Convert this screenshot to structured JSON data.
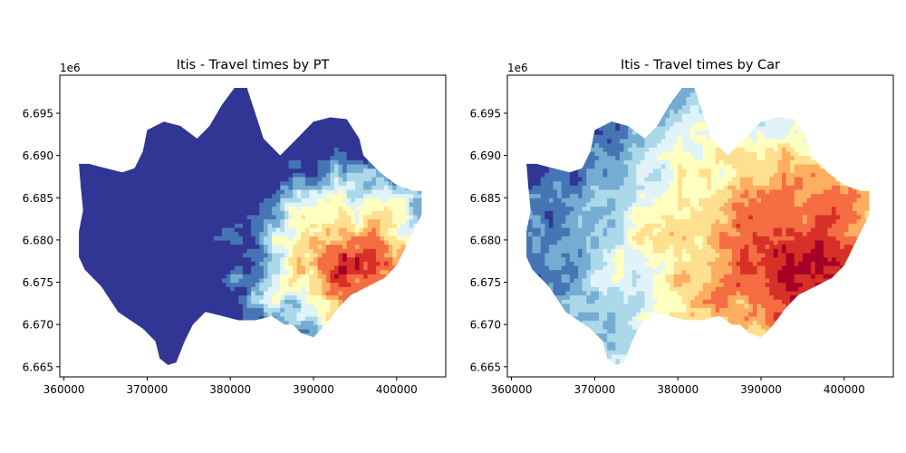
{
  "figure": {
    "colormap": [
      "#313695",
      "#4575b4",
      "#74add1",
      "#abd9e9",
      "#e0f3f8",
      "#ffffbf",
      "#fee090",
      "#fdae61",
      "#f46d43",
      "#d73027",
      "#a50026"
    ],
    "panels": [
      {
        "id": "pt",
        "title": "Itis - Travel times by PT",
        "offset_label": "1e6",
        "x_ticks": [
          360000,
          370000,
          380000,
          390000,
          400000
        ],
        "x_tick_labels": [
          "360000",
          "370000",
          "380000",
          "390000",
          "400000"
        ],
        "y_ticks": [
          6665000,
          6670000,
          6675000,
          6680000,
          6685000,
          6690000,
          6695000
        ],
        "y_tick_labels": [
          "6.665",
          "6.670",
          "6.675",
          "6.680",
          "6.685",
          "6.690",
          "6.695"
        ],
        "xlim": [
          359500,
          405900
        ],
        "ylim": [
          6663800,
          6699500
        ],
        "mode": "pt"
      },
      {
        "id": "car",
        "title": "Itis - Travel times by Car",
        "offset_label": "1e6",
        "x_ticks": [
          360000,
          370000,
          380000,
          390000,
          400000
        ],
        "x_tick_labels": [
          "360000",
          "370000",
          "380000",
          "390000",
          "400000"
        ],
        "y_ticks": [
          6665000,
          6670000,
          6675000,
          6680000,
          6685000,
          6690000,
          6695000
        ],
        "y_tick_labels": [
          "6.665",
          "6.670",
          "6.675",
          "6.680",
          "6.685",
          "6.690",
          "6.695"
        ],
        "xlim": [
          359500,
          405900
        ],
        "ylim": [
          6663800,
          6699500
        ],
        "mode": "car"
      }
    ]
  },
  "region": {
    "outline": [
      [
        361800,
        6689000
      ],
      [
        363000,
        6689000
      ],
      [
        365000,
        6688500
      ],
      [
        367000,
        6688000
      ],
      [
        368500,
        6688500
      ],
      [
        369500,
        6690500
      ],
      [
        370000,
        6693000
      ],
      [
        372000,
        6694000
      ],
      [
        374000,
        6693500
      ],
      [
        376000,
        6692000
      ],
      [
        377500,
        6693500
      ],
      [
        379000,
        6696000
      ],
      [
        380500,
        6698000
      ],
      [
        382000,
        6698000
      ],
      [
        383000,
        6695000
      ],
      [
        384000,
        6692000
      ],
      [
        386000,
        6690000
      ],
      [
        388000,
        6692000
      ],
      [
        390000,
        6694000
      ],
      [
        392000,
        6694500
      ],
      [
        394000,
        6694300
      ],
      [
        395500,
        6692000
      ],
      [
        396000,
        6690000
      ],
      [
        398000,
        6688000
      ],
      [
        400000,
        6686500
      ],
      [
        402000,
        6685800
      ],
      [
        403000,
        6685800
      ],
      [
        403000,
        6683000
      ],
      [
        402000,
        6681000
      ],
      [
        401000,
        6679000
      ],
      [
        400000,
        6677000
      ],
      [
        398500,
        6675500
      ],
      [
        396500,
        6674500
      ],
      [
        394500,
        6673500
      ],
      [
        393000,
        6672000
      ],
      [
        391500,
        6670000
      ],
      [
        390000,
        6668500
      ],
      [
        388500,
        6669000
      ],
      [
        387500,
        6670000
      ],
      [
        386500,
        6670000
      ],
      [
        385000,
        6671000
      ],
      [
        383000,
        6670500
      ],
      [
        381000,
        6670500
      ],
      [
        379000,
        6671000
      ],
      [
        377000,
        6671500
      ],
      [
        375500,
        6670000
      ],
      [
        374500,
        6668000
      ],
      [
        373500,
        6665500
      ],
      [
        372500,
        6665200
      ],
      [
        371500,
        6666000
      ],
      [
        371000,
        6668000
      ],
      [
        369500,
        6669500
      ],
      [
        368000,
        6670500
      ],
      [
        366500,
        6671500
      ],
      [
        365500,
        6673000
      ],
      [
        364500,
        6674500
      ],
      [
        363500,
        6675500
      ],
      [
        362500,
        6676500
      ],
      [
        361800,
        6678000
      ],
      [
        361800,
        6681000
      ],
      [
        362300,
        6683500
      ],
      [
        362000,
        6686500
      ]
    ],
    "hot_center": [
      394500,
      6677000
    ]
  }
}
